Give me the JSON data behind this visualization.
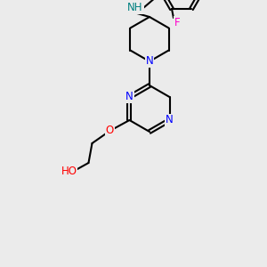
{
  "bg_color": "#ebebeb",
  "atom_colors": {
    "N": "#0000ff",
    "O": "#ff0000",
    "F": "#ff00cc",
    "NH": "#008080"
  },
  "bond_color": "#000000",
  "bond_lw": 1.5,
  "label_fontsize": 8.5
}
